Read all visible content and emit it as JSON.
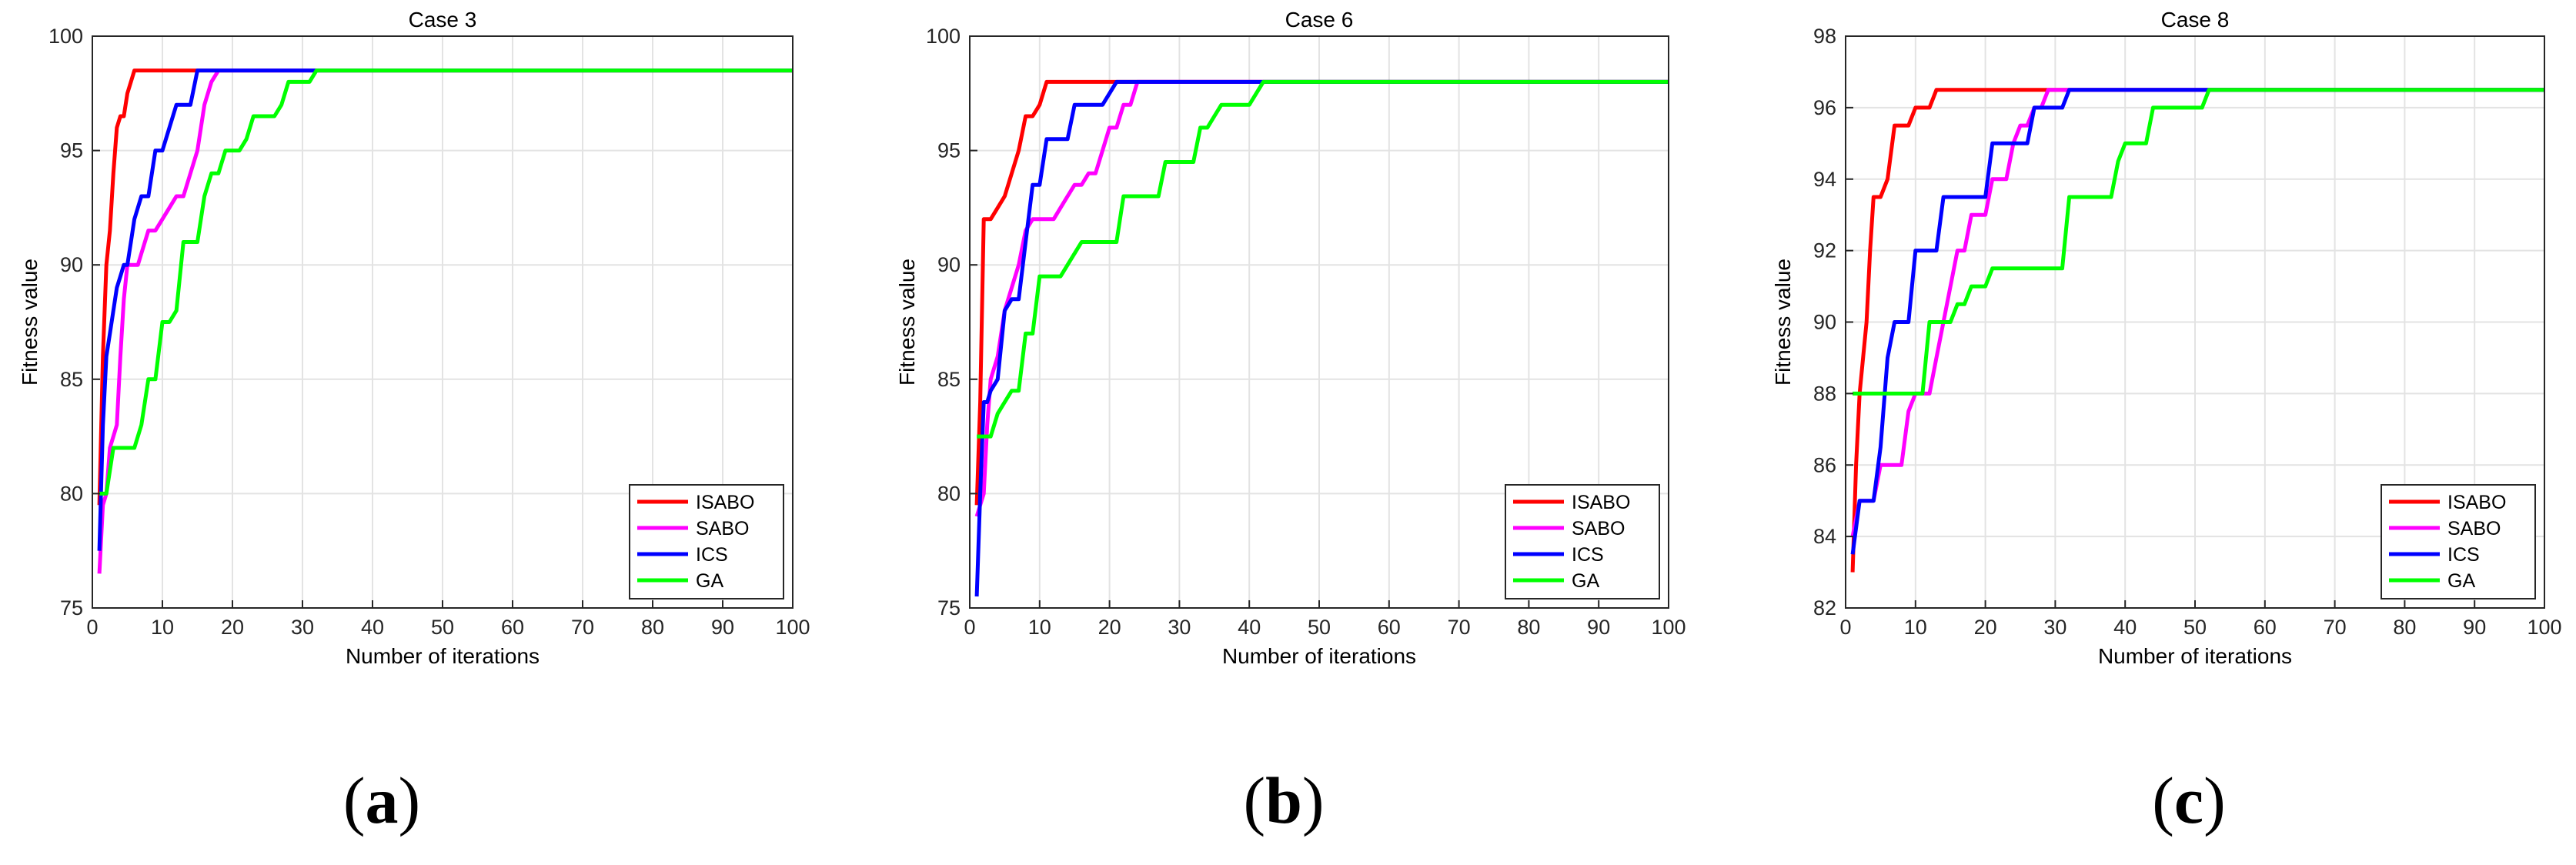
{
  "colors": {
    "ISABO": "#ff0000",
    "SABO": "#ff00ff",
    "ICS": "#0000ff",
    "GA": "#00ff00"
  },
  "panel_labels": [
    "a",
    "b",
    "c"
  ],
  "chart_data": [
    {
      "type": "line",
      "title": "Case 3",
      "xlabel": "Number of iterations",
      "ylabel": "Fitness value",
      "xlim": [
        0,
        100
      ],
      "ylim": [
        75,
        100
      ],
      "xticks": [
        0,
        10,
        20,
        30,
        40,
        50,
        60,
        70,
        80,
        90,
        100
      ],
      "yticks": [
        75,
        80,
        85,
        90,
        95,
        100
      ],
      "grid": true,
      "legend_position": "bottom-right",
      "series": [
        {
          "name": "ISABO",
          "x": [
            1,
            1.5,
            2,
            2.5,
            3,
            3.5,
            4,
            4.5,
            5,
            5.5,
            6,
            6.5,
            7,
            100
          ],
          "y": [
            79.5,
            86,
            90,
            91.5,
            94,
            96,
            96.5,
            96.5,
            97.5,
            98,
            98.5,
            98.5,
            98.5,
            98.5
          ]
        },
        {
          "name": "SABO",
          "x": [
            1,
            1.5,
            2,
            2.5,
            3,
            3.5,
            4,
            4.5,
            5,
            5.5,
            6,
            6.5,
            7,
            8,
            9,
            10,
            11,
            12,
            13,
            14,
            15,
            16,
            17,
            18,
            100
          ],
          "y": [
            76.5,
            79.5,
            80,
            82,
            82.5,
            83,
            86,
            88.5,
            90,
            90,
            90,
            90,
            90.5,
            91.5,
            91.5,
            92,
            92.5,
            93,
            93,
            94,
            95,
            97,
            98,
            98.5,
            98.5
          ]
        },
        {
          "name": "ICS",
          "x": [
            1,
            1.5,
            2,
            2.5,
            3,
            3.5,
            4,
            4.5,
            5,
            5.5,
            6,
            7,
            8,
            9,
            10,
            11,
            12,
            13,
            14,
            15,
            16,
            33,
            34,
            100
          ],
          "y": [
            77.5,
            83,
            86,
            87,
            88,
            89,
            89.5,
            90,
            90,
            91,
            92,
            93,
            93,
            95,
            95,
            96,
            97,
            97,
            97,
            98.5,
            98.5,
            98.5,
            98.5,
            98.5
          ]
        },
        {
          "name": "GA",
          "x": [
            1,
            2,
            3,
            4,
            5,
            6,
            7,
            8,
            9,
            10,
            11,
            12,
            13,
            14,
            15,
            16,
            17,
            18,
            19,
            20,
            21,
            22,
            23,
            24,
            25,
            26,
            27,
            28,
            29,
            30,
            31,
            32,
            100
          ],
          "y": [
            80,
            80,
            82,
            82,
            82,
            82,
            83,
            85,
            85,
            87.5,
            87.5,
            88,
            91,
            91,
            91,
            93,
            94,
            94,
            95,
            95,
            95,
            95.5,
            96.5,
            96.5,
            96.5,
            96.5,
            97,
            98,
            98,
            98,
            98,
            98.5,
            98.5
          ]
        }
      ]
    },
    {
      "type": "line",
      "title": "Case 6",
      "xlabel": "Number of iterations",
      "ylabel": "Fitness value",
      "xlim": [
        0,
        100
      ],
      "ylim": [
        75,
        100
      ],
      "xticks": [
        0,
        10,
        20,
        30,
        40,
        50,
        60,
        70,
        80,
        90,
        100
      ],
      "yticks": [
        75,
        80,
        85,
        90,
        95,
        100
      ],
      "grid": true,
      "legend_position": "bottom-right",
      "series": [
        {
          "name": "ISABO",
          "x": [
            1,
            1.5,
            2,
            2.5,
            3,
            4,
            5,
            6,
            7,
            8,
            9,
            10,
            11,
            12,
            100
          ],
          "y": [
            79.5,
            84,
            92,
            92,
            92,
            92.5,
            93,
            94,
            95,
            96.5,
            96.5,
            97,
            98,
            98,
            98
          ]
        },
        {
          "name": "SABO",
          "x": [
            1,
            1.5,
            2,
            2.5,
            3,
            4,
            5,
            6,
            7,
            8,
            9,
            10,
            11,
            12,
            13,
            14,
            15,
            16,
            17,
            18,
            19,
            20,
            21,
            22,
            23,
            24,
            25,
            100
          ],
          "y": [
            79,
            79.5,
            80,
            83,
            85,
            86,
            88,
            89,
            90,
            91.5,
            92,
            92,
            92,
            92,
            92.5,
            93,
            93.5,
            93.5,
            94,
            94,
            95,
            96,
            96,
            97,
            97,
            98,
            98,
            98
          ]
        },
        {
          "name": "ICS",
          "x": [
            1,
            1.5,
            2,
            2.5,
            3,
            4,
            5,
            6,
            7,
            8,
            9,
            10,
            11,
            12,
            13,
            14,
            15,
            16,
            17,
            18,
            19,
            20,
            21,
            22,
            42,
            43,
            100
          ],
          "y": [
            75.5,
            80,
            84,
            84,
            84.5,
            85,
            88,
            88.5,
            88.5,
            91,
            93.5,
            93.5,
            95.5,
            95.5,
            95.5,
            95.5,
            97,
            97,
            97,
            97,
            97,
            97.5,
            98,
            98,
            98,
            98,
            98
          ]
        },
        {
          "name": "GA",
          "x": [
            1,
            2,
            3,
            4,
            5,
            6,
            7,
            8,
            9,
            10,
            11,
            12,
            13,
            14,
            15,
            16,
            17,
            18,
            19,
            20,
            21,
            22,
            23,
            24,
            25,
            26,
            27,
            28,
            29,
            30,
            31,
            32,
            33,
            34,
            35,
            36,
            37,
            38,
            39,
            40,
            41,
            42,
            43,
            100
          ],
          "y": [
            82.5,
            82.5,
            82.5,
            83.5,
            84,
            84.5,
            84.5,
            87,
            87,
            89.5,
            89.5,
            89.5,
            89.5,
            90,
            90.5,
            91,
            91,
            91,
            91,
            91,
            91,
            93,
            93,
            93,
            93,
            93,
            93,
            94.5,
            94.5,
            94.5,
            94.5,
            94.5,
            96,
            96,
            96.5,
            97,
            97,
            97,
            97,
            97,
            97.5,
            98,
            98,
            98
          ]
        }
      ]
    },
    {
      "type": "line",
      "title": "Case 8",
      "xlabel": "Number of iterations",
      "ylabel": "Fitness value",
      "xlim": [
        0,
        100
      ],
      "ylim": [
        82,
        98
      ],
      "xticks": [
        0,
        10,
        20,
        30,
        40,
        50,
        60,
        70,
        80,
        90,
        100
      ],
      "yticks": [
        82,
        84,
        86,
        88,
        90,
        92,
        94,
        96,
        98
      ],
      "grid": true,
      "legend_position": "bottom-right",
      "series": [
        {
          "name": "ISABO",
          "x": [
            1,
            1.5,
            2,
            2.5,
            3,
            3.5,
            4,
            5,
            6,
            7,
            8,
            9,
            10,
            11,
            12,
            13,
            14,
            29,
            100
          ],
          "y": [
            83,
            86,
            88,
            89,
            90,
            92,
            93.5,
            93.5,
            94,
            95.5,
            95.5,
            95.5,
            96,
            96,
            96,
            96.5,
            96.5,
            96.5,
            96.5
          ]
        },
        {
          "name": "SABO",
          "x": [
            1,
            2,
            3,
            4,
            5,
            6,
            7,
            8,
            9,
            10,
            11,
            12,
            13,
            14,
            15,
            16,
            17,
            18,
            19,
            20,
            21,
            22,
            23,
            24,
            25,
            26,
            27,
            28,
            29,
            30,
            31,
            100
          ],
          "y": [
            84,
            85,
            85,
            85,
            86,
            86,
            86,
            86,
            87.5,
            88,
            88,
            88,
            89,
            90,
            91,
            92,
            92,
            93,
            93,
            93,
            94,
            94,
            94,
            95,
            95.5,
            95.5,
            96,
            96,
            96.5,
            96.5,
            96.5,
            96.5
          ]
        },
        {
          "name": "ICS",
          "x": [
            1,
            2,
            3,
            4,
            5,
            6,
            7,
            8,
            9,
            10,
            11,
            12,
            13,
            14,
            15,
            16,
            17,
            18,
            19,
            20,
            21,
            22,
            23,
            24,
            25,
            26,
            27,
            28,
            29,
            30,
            31,
            32,
            33,
            51,
            52,
            100
          ],
          "y": [
            83.5,
            85,
            85,
            85,
            86.5,
            89,
            90,
            90,
            90,
            92,
            92,
            92,
            92,
            93.5,
            93.5,
            93.5,
            93.5,
            93.5,
            93.5,
            93.5,
            95,
            95,
            95,
            95,
            95,
            95,
            96,
            96,
            96,
            96,
            96,
            96.5,
            96.5,
            96.5,
            96.5,
            96.5
          ]
        },
        {
          "name": "GA",
          "x": [
            1,
            10,
            11,
            12,
            13,
            14,
            15,
            16,
            17,
            18,
            19,
            20,
            21,
            22,
            23,
            24,
            25,
            30,
            31,
            32,
            33,
            34,
            35,
            36,
            37,
            38,
            39,
            40,
            41,
            42,
            43,
            44,
            45,
            46,
            47,
            48,
            49,
            50,
            51,
            52,
            100
          ],
          "y": [
            88,
            88,
            88,
            90,
            90,
            90,
            90,
            90.5,
            90.5,
            91,
            91,
            91,
            91.5,
            91.5,
            91.5,
            91.5,
            91.5,
            91.5,
            91.5,
            93.5,
            93.5,
            93.5,
            93.5,
            93.5,
            93.5,
            93.5,
            94.5,
            95,
            95,
            95,
            95,
            96,
            96,
            96,
            96,
            96,
            96,
            96,
            96,
            96.5,
            96.5
          ]
        }
      ]
    }
  ]
}
